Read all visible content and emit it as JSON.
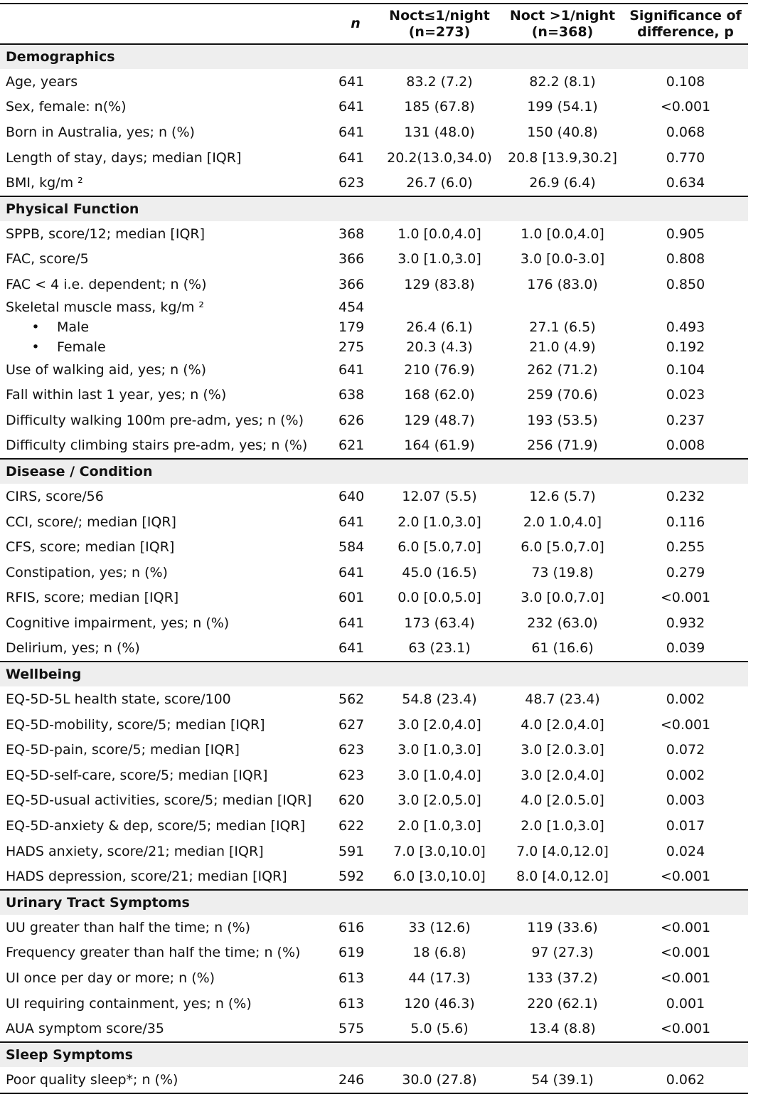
{
  "header": {
    "col_n": "n",
    "col_a_line1": "Noct≤1/night",
    "col_a_line2": "(n=273)",
    "col_b_line1": "Noct >1/night",
    "col_b_line2": "(n=368)",
    "col_p_line1": "Significance of",
    "col_p_line2": "difference, p"
  },
  "sections": [
    {
      "title": "Demographics",
      "rows": [
        {
          "label": "Age, years",
          "n": "641",
          "a": "83.2 (7.2)",
          "b": "82.2 (8.1)",
          "p": "0.108"
        },
        {
          "label": "Sex, female: n(%)",
          "n": "641",
          "a": "185 (67.8)",
          "b": "199 (54.1)",
          "p": "<0.001"
        },
        {
          "label": "Born in Australia, yes; n (%)",
          "n": "641",
          "a": "131 (48.0)",
          "b": "150 (40.8)",
          "p": "0.068"
        },
        {
          "label": "Length of stay, days; median [IQR]",
          "n": "641",
          "a": "20.2(13.0,34.0)",
          "b": "20.8 [13.9,30.2]",
          "p": "0.770"
        },
        {
          "label": "BMI, kg/m ²",
          "n": "623",
          "a": "26.7 (6.0)",
          "b": "26.9 (6.4)",
          "p": "0.634"
        }
      ]
    },
    {
      "title": "Physical Function",
      "rows": [
        {
          "label": "SPPB, score/12; median [IQR]",
          "n": "368",
          "a": "1.0 [0.0,4.0]",
          "b": "1.0 [0.0,4.0]",
          "p": "0.905"
        },
        {
          "label": "FAC, score/5",
          "n": "366",
          "a": "3.0 [1.0,3.0]",
          "b": "3.0 [0.0-3.0]",
          "p": "0.808"
        },
        {
          "label": "FAC < 4 i.e. dependent; n (%)",
          "n": "366",
          "a": "129 (83.8)",
          "b": "176 (83.0)",
          "p": "0.850"
        },
        {
          "label": "Skeletal muscle mass, kg/m ²",
          "n": "454",
          "a": "",
          "b": "",
          "p": "",
          "compact": true
        },
        {
          "label": "Male",
          "n": "179",
          "a": "26.4 (6.1)",
          "b": "27.1 (6.5)",
          "p": "0.493",
          "bullet": "•"
        },
        {
          "label": "Female",
          "n": "275",
          "a": "20.3 (4.3)",
          "b": "21.0 (4.9)",
          "p": "0.192",
          "bullet": "•"
        },
        {
          "label": "Use of walking aid, yes; n (%)",
          "n": "641",
          "a": "210 (76.9)",
          "b": "262 (71.2)",
          "p": "0.104"
        },
        {
          "label": "Fall within last 1 year, yes; n (%)",
          "n": "638",
          "a": "168 (62.0)",
          "b": "259 (70.6)",
          "p": "0.023"
        },
        {
          "label": "Difficulty walking 100m pre-adm, yes; n (%)",
          "n": "626",
          "a": "129 (48.7)",
          "b": "193 (53.5)",
          "p": "0.237"
        },
        {
          "label": "Difficulty climbing stairs pre-adm, yes; n (%)",
          "n": "621",
          "a": "164 (61.9)",
          "b": "256 (71.9)",
          "p": "0.008"
        }
      ]
    },
    {
      "title": "Disease / Condition",
      "rows": [
        {
          "label": "CIRS, score/56",
          "n": "640",
          "a": "12.07 (5.5)",
          "b": "12.6 (5.7)",
          "p": "0.232"
        },
        {
          "label": "CCI, score/; median [IQR]",
          "n": "641",
          "a": "2.0 [1.0,3.0]",
          "b": "2.0 1.0,4.0]",
          "p": "0.116"
        },
        {
          "label": "CFS, score; median [IQR]",
          "n": "584",
          "a": "6.0 [5.0,7.0]",
          "b": "6.0 [5.0,7.0]",
          "p": "0.255"
        },
        {
          "label": "Constipation, yes; n (%)",
          "n": "641",
          "a": "45.0 (16.5)",
          "b": "73 (19.8)",
          "p": "0.279"
        },
        {
          "label": "RFIS, score; median [IQR]",
          "n": "601",
          "a": "0.0 [0.0,5.0]",
          "b": "3.0 [0.0,7.0]",
          "p": "<0.001"
        },
        {
          "label": "Cognitive impairment, yes; n (%)",
          "n": "641",
          "a": "173 (63.4)",
          "b": "232 (63.0)",
          "p": "0.932"
        },
        {
          "label": "Delirium, yes; n (%)",
          "n": "641",
          "a": "63 (23.1)",
          "b": "61 (16.6)",
          "p": "0.039"
        }
      ]
    },
    {
      "title": "Wellbeing",
      "rows": [
        {
          "label": "EQ-5D-5L health state, score/100",
          "n": "562",
          "a": "54.8 (23.4)",
          "b": "48.7 (23.4)",
          "p": "0.002"
        },
        {
          "label": "EQ-5D-mobility, score/5; median [IQR]",
          "n": "627",
          "a": "3.0 [2.0,4.0]",
          "b": "4.0 [2.0,4.0]",
          "p": "<0.001"
        },
        {
          "label": "EQ-5D-pain, score/5; median [IQR]",
          "n": "623",
          "a": "3.0 [1.0,3.0]",
          "b": "3.0 [2.0.3.0]",
          "p": "0.072"
        },
        {
          "label": "EQ-5D-self-care, score/5; median [IQR]",
          "n": "623",
          "a": "3.0 [1.0,4.0]",
          "b": "3.0 [2.0,4.0]",
          "p": "0.002"
        },
        {
          "label": "EQ-5D-usual activities, score/5; median [IQR]",
          "n": "620",
          "a": "3.0 [2.0,5.0]",
          "b": "4.0 [2.0.5.0]",
          "p": "0.003"
        },
        {
          "label": "EQ-5D-anxiety & dep, score/5; median [IQR]",
          "n": "622",
          "a": "2.0 [1.0,3.0]",
          "b": "2.0 [1.0,3.0]",
          "p": "0.017"
        },
        {
          "label": "HADS anxiety, score/21; median [IQR]",
          "n": "591",
          "a": "7.0 [3.0,10.0]",
          "b": "7.0 [4.0,12.0]",
          "p": "0.024"
        },
        {
          "label": "HADS depression, score/21; median [IQR]",
          "n": "592",
          "a": "6.0 [3.0,10.0]",
          "b": "8.0 [4.0,12.0]",
          "p": "<0.001"
        }
      ]
    },
    {
      "title": "Urinary Tract Symptoms",
      "rows": [
        {
          "label": "UU greater than half the time; n (%)",
          "n": "616",
          "a": "33 (12.6)",
          "b": "119 (33.6)",
          "p": "<0.001"
        },
        {
          "label": "Frequency greater than half the time; n (%)",
          "n": "619",
          "a": "18 (6.8)",
          "b": "97 (27.3)",
          "p": "<0.001"
        },
        {
          "label": "UI once per day or more; n (%)",
          "n": "613",
          "a": "44 (17.3)",
          "b": "133 (37.2)",
          "p": "<0.001"
        },
        {
          "label": "UI requiring containment, yes; n (%)",
          "n": "613",
          "a": "120 (46.3)",
          "b": "220 (62.1)",
          "p": "0.001"
        },
        {
          "label": "AUA symptom score/35",
          "n": "575",
          "a": "5.0 (5.6)",
          "b": "13.4 (8.8)",
          "p": "<0.001"
        }
      ]
    },
    {
      "title": "Sleep Symptoms",
      "rows": [
        {
          "label": "Poor quality sleep*; n (%)",
          "n": "246",
          "a": "30.0 (27.8)",
          "b": "54 (39.1)",
          "p": "0.062"
        }
      ]
    }
  ]
}
